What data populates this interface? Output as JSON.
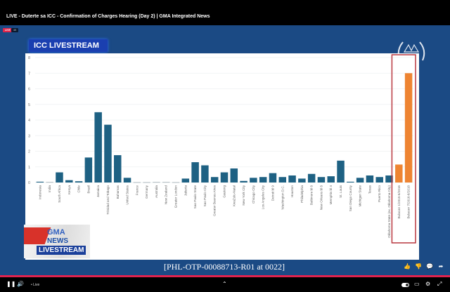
{
  "window": {
    "title": "LIVE - Duterte sa ICC - Confirmation of Charges Hearing (Day 2) | GMA Integrated News"
  },
  "video": {
    "live_badge": "LIVE",
    "quality_badge": "4K",
    "overlay_title": "ICC LIVESTREAM",
    "caption": "[PHL-OTP-00088713-R01 at 0022]",
    "gma_logo": {
      "brand": "GMA",
      "sub": "NEWS",
      "tag": "LIVESTREAM"
    },
    "colors": {
      "background": "#1b4a84",
      "bar_blue": "#1e6183",
      "bar_orange": "#ee8432",
      "highlight_box": "#b8363e"
    }
  },
  "reactions": [
    {
      "icon": "thumbs-up-icon",
      "glyph": "👍"
    },
    {
      "icon": "thumbs-down-icon",
      "glyph": "👎"
    },
    {
      "icon": "comment-icon",
      "glyph": "💬"
    },
    {
      "icon": "share-icon",
      "glyph": "➦"
    }
  ],
  "player_controls": {
    "pause": "❚❚",
    "volume": "🔊",
    "live_label": "• Live",
    "expand": "⌃",
    "settings": "⚙",
    "fullscreen": "⤢",
    "captions": "▭"
  },
  "chart_data": {
    "type": "bar",
    "title": "",
    "xlabel": "",
    "ylabel": "",
    "ylim": [
      0,
      8
    ],
    "yticks": [
      0,
      1,
      2,
      3,
      4,
      5,
      6,
      7,
      8
    ],
    "grid": true,
    "categories": [
      "Indonesia",
      "India",
      "South Africa",
      "Kenya",
      "Chile",
      "Brazil",
      "Jamaica",
      "Trinidad and Tobago",
      "Bahamas",
      "United States",
      "France",
      "Germany",
      "Australia",
      "New Zealand",
      "Greater London",
      "Jakarta",
      "Sao Paulo State",
      "Sao Paulo City",
      "Greater Buenos Aires",
      "Gauteng",
      "KwaZulu-Natal",
      "New York City",
      "Chicago City",
      "Los Angeles City",
      "Detroit bl 9",
      "Washington D.C.",
      "Houston",
      "Philadelphia",
      "Baltimore bl 8",
      "New Orleans bl 8",
      "Memphis bl 4",
      "St. Louis",
      "San Diego County",
      "Michigan State",
      "Texas",
      "Puerto Rico",
      "Oklahoma State (ex. Oklahoma City)",
      "Bulacan 1/2015-6/2016",
      "Bulacan 7/2016-6/2018"
    ],
    "values": [
      0.05,
      0.03,
      0.65,
      0.15,
      0.08,
      1.6,
      4.5,
      3.7,
      1.75,
      0.3,
      0.02,
      0.02,
      0.03,
      0.03,
      0.02,
      0.25,
      1.3,
      1.1,
      0.35,
      0.65,
      0.9,
      0.1,
      0.3,
      0.35,
      0.6,
      0.35,
      0.45,
      0.25,
      0.55,
      0.35,
      0.4,
      1.4,
      0.05,
      0.3,
      0.45,
      0.35,
      0.45,
      1.15,
      7.0
    ],
    "highlighted": [
      "Bulacan 1/2015-6/2016",
      "Bulacan 7/2016-6/2018"
    ]
  }
}
